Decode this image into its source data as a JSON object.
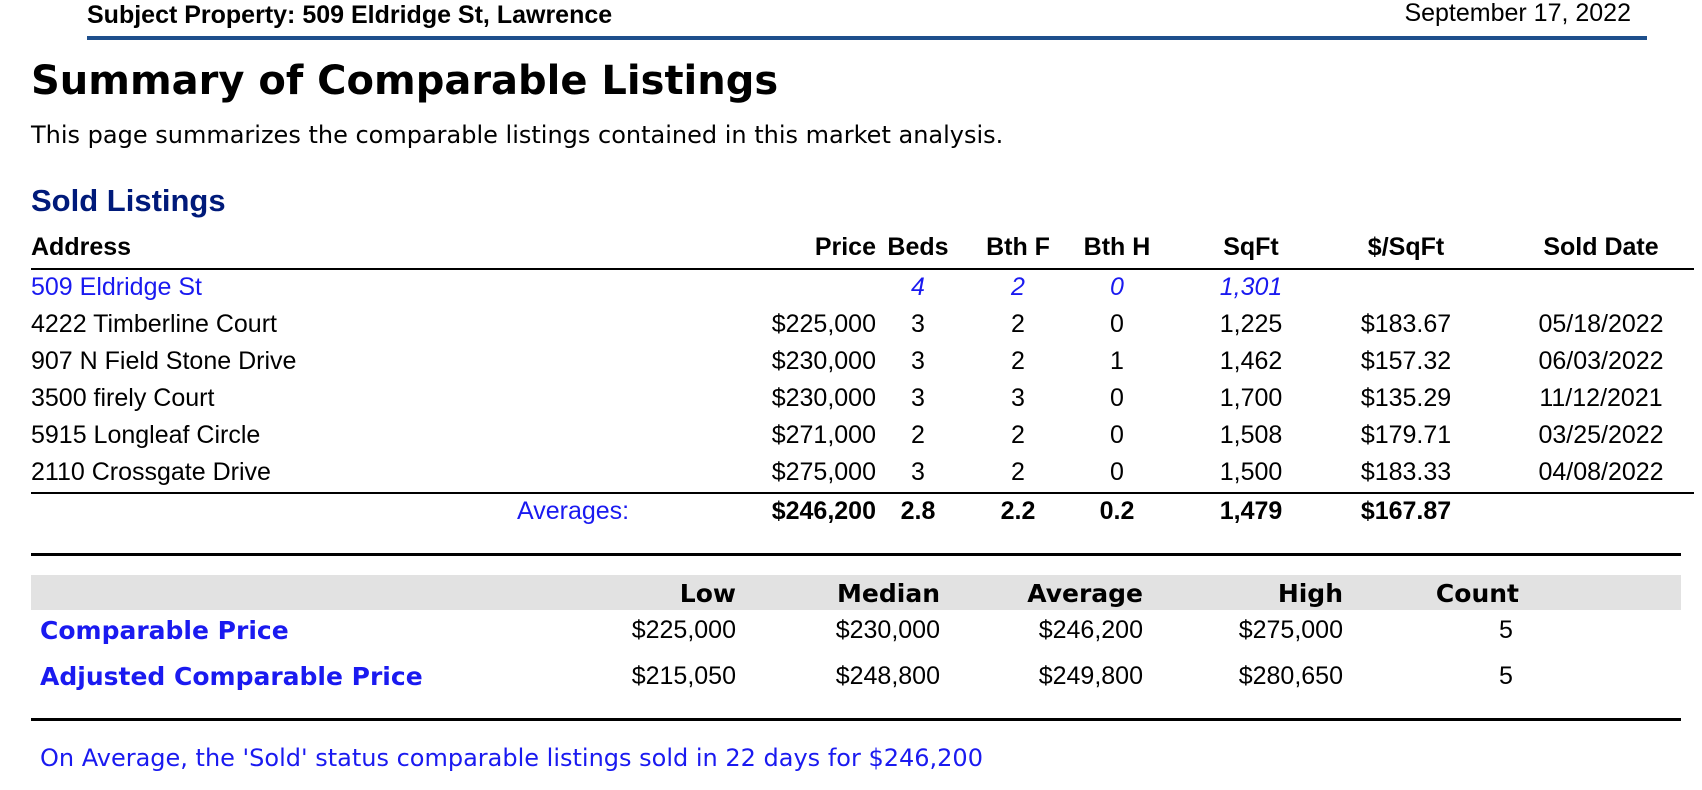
{
  "header": {
    "subject": "Subject Property: 509 Eldridge St, Lawrence",
    "date": "September 17, 2022"
  },
  "page": {
    "title": "Summary of Comparable Listings",
    "intro": "This page summarizes the comparable listings contained in this market analysis."
  },
  "sold_listings": {
    "title": "Sold Listings",
    "columns": {
      "address": "Address",
      "price": "Price",
      "beds": "Beds",
      "bth_f": "Bth F",
      "bth_h": "Bth H",
      "sqft": "SqFt",
      "price_per_sqft": "$/SqFt",
      "sold_date": "Sold Date"
    },
    "subject": {
      "address": "509 Eldridge St",
      "beds": "4",
      "bth_f": "2",
      "bth_h": "0",
      "sqft": "1,301"
    },
    "rows": [
      {
        "address": "4222 Timberline Court",
        "price": "$225,000",
        "beds": "3",
        "bth_f": "2",
        "bth_h": "0",
        "sqft": "1,225",
        "price_per_sqft": "$183.67",
        "sold_date": "05/18/2022"
      },
      {
        "address": "907 N Field Stone Drive",
        "price": "$230,000",
        "beds": "3",
        "bth_f": "2",
        "bth_h": "1",
        "sqft": "1,462",
        "price_per_sqft": "$157.32",
        "sold_date": "06/03/2022"
      },
      {
        "address": "3500 firely Court",
        "price": "$230,000",
        "beds": "3",
        "bth_f": "3",
        "bth_h": "0",
        "sqft": "1,700",
        "price_per_sqft": "$135.29",
        "sold_date": "11/12/2021"
      },
      {
        "address": "5915 Longleaf Circle",
        "price": "$271,000",
        "beds": "2",
        "bth_f": "2",
        "bth_h": "0",
        "sqft": "1,508",
        "price_per_sqft": "$179.71",
        "sold_date": "03/25/2022"
      },
      {
        "address": "2110 Crossgate Drive",
        "price": "$275,000",
        "beds": "3",
        "bth_f": "2",
        "bth_h": "0",
        "sqft": "1,500",
        "price_per_sqft": "$183.33",
        "sold_date": "04/08/2022"
      }
    ],
    "averages": {
      "label": "Averages:",
      "price": "$246,200",
      "beds": "2.8",
      "bth_f": "2.2",
      "bth_h": "0.2",
      "sqft": "1,479",
      "price_per_sqft": "$167.87"
    }
  },
  "summary": {
    "columns": {
      "low": "Low",
      "median": "Median",
      "average": "Average",
      "high": "High",
      "count": "Count"
    },
    "rows": [
      {
        "label": "Comparable Price",
        "low": "$225,000",
        "median": "$230,000",
        "average": "$246,200",
        "high": "$275,000",
        "count": "5"
      },
      {
        "label": "Adjusted Comparable Price",
        "low": "$215,050",
        "median": "$248,800",
        "average": "$249,800",
        "high": "$280,650",
        "count": "5"
      }
    ]
  },
  "footer_note": "On Average, the 'Sold' status comparable listings sold in 22 days for $246,200",
  "colors": {
    "header_rule": "#1e4f8c",
    "section_title": "#001a7a",
    "link_blue": "#1a1af0",
    "summary_header_bg": "#e2e2e2"
  }
}
